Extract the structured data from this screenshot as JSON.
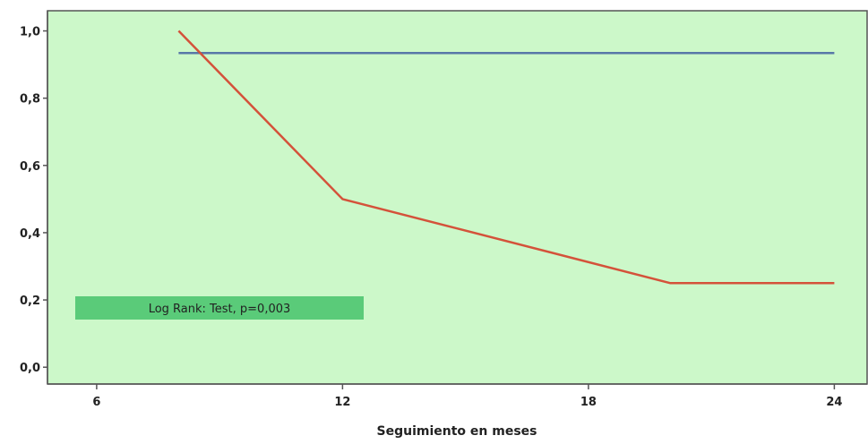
{
  "chart_data": {
    "type": "line",
    "xlabel": "Seguimiento en meses",
    "ylabel": "",
    "xlim": [
      4.8,
      24.8
    ],
    "ylim": [
      -0.05,
      1.06
    ],
    "x_ticks": [
      6,
      12,
      18,
      24
    ],
    "x_tick_labels": [
      "6",
      "12",
      "18",
      "24"
    ],
    "y_ticks": [
      0.0,
      0.2,
      0.4,
      0.6,
      0.8,
      1.0
    ],
    "y_tick_labels": [
      "0,0",
      "0,2",
      "0,4",
      "0,6",
      "0,8",
      "1,0"
    ],
    "grid": false,
    "background": "#ccf8c9",
    "series": [
      {
        "color": "#5878a8",
        "x": [
          8,
          24
        ],
        "y": [
          0.934,
          0.934
        ]
      },
      {
        "color": "#d4523a",
        "x": [
          8,
          12,
          20,
          24
        ],
        "y": [
          1.0,
          0.5,
          0.25,
          0.25
        ]
      }
    ],
    "annotations": [
      {
        "text": "Log Rank: Test, p=0,003",
        "box_color": "#5acb79"
      }
    ]
  }
}
